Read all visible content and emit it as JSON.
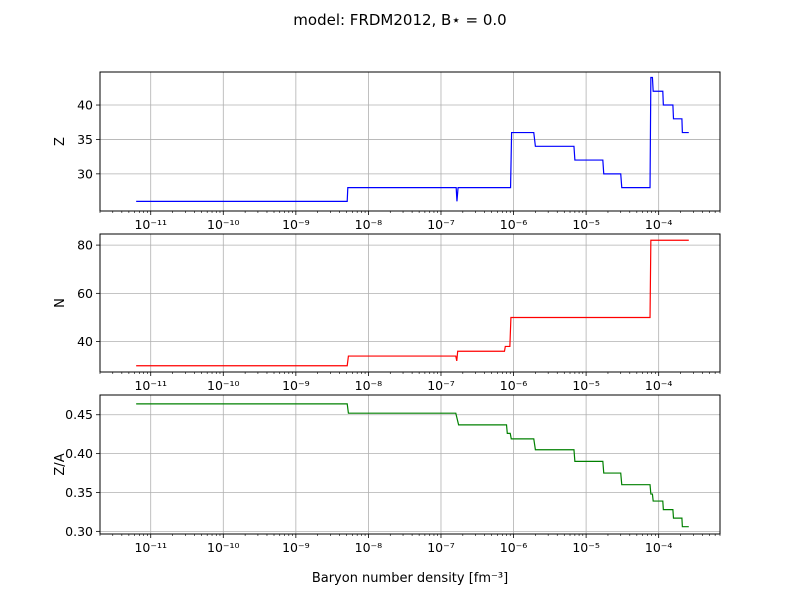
{
  "chart_data": {
    "title": "model: FRDM2012, B⋆ = 0.0",
    "x_scale": "log",
    "xlim": [
      2e-12,
      0.0007
    ],
    "xlabel": "Baryon number density [fm⁻³]",
    "grid": true,
    "x_tick_labels": [
      {
        "value": 1e-11,
        "label": "10⁻¹¹"
      },
      {
        "value": 1e-10,
        "label": "10⁻¹⁰"
      },
      {
        "value": 1e-09,
        "label": "10⁻⁹"
      },
      {
        "value": 1e-08,
        "label": "10⁻⁸"
      },
      {
        "value": 1e-07,
        "label": "10⁻⁷"
      },
      {
        "value": 1e-06,
        "label": "10⁻⁶"
      },
      {
        "value": 1e-05,
        "label": "10⁻⁵"
      },
      {
        "value": 0.0001,
        "label": "10⁻⁴"
      }
    ],
    "panels": [
      {
        "type": "line",
        "ylabel": "Z",
        "color": "#0000ff",
        "ylim": [
          24.6,
          44.8
        ],
        "yticks": [
          30,
          35,
          40
        ],
        "points": [
          [
            6.3e-12,
            26
          ],
          [
            5.1e-09,
            26
          ],
          [
            5.2e-09,
            28
          ],
          [
            1.62e-07,
            28
          ],
          [
            1.66e-07,
            26
          ],
          [
            1.72e-07,
            28
          ],
          [
            9.1e-07,
            28
          ],
          [
            9.4e-07,
            36
          ],
          [
            1.9e-06,
            36
          ],
          [
            2e-06,
            34
          ],
          [
            6.8e-06,
            34
          ],
          [
            7e-06,
            32
          ],
          [
            1.7e-05,
            32
          ],
          [
            1.75e-05,
            30
          ],
          [
            3e-05,
            30
          ],
          [
            3.1e-05,
            28
          ],
          [
            7.6e-05,
            28
          ],
          [
            7.8e-05,
            44
          ],
          [
            8.2e-05,
            44
          ],
          [
            8.4e-05,
            42
          ],
          [
            0.000114,
            42
          ],
          [
            0.000116,
            40
          ],
          [
            0.000157,
            40
          ],
          [
            0.00016,
            38
          ],
          [
            0.000209,
            38
          ],
          [
            0.000212,
            36
          ],
          [
            0.00026,
            36
          ]
        ]
      },
      {
        "type": "line",
        "ylabel": "N",
        "color": "#ff0000",
        "ylim": [
          27.4,
          84.6
        ],
        "yticks": [
          40,
          60,
          80
        ],
        "points": [
          [
            6.3e-12,
            30
          ],
          [
            5.1e-09,
            30
          ],
          [
            5.3e-09,
            34
          ],
          [
            1.6e-07,
            34
          ],
          [
            1.65e-07,
            32
          ],
          [
            1.7e-07,
            36
          ],
          [
            7.5e-07,
            36
          ],
          [
            7.7e-07,
            38
          ],
          [
            8.9e-07,
            38
          ],
          [
            9.2e-07,
            50
          ],
          [
            7.6e-05,
            50
          ],
          [
            7.8e-05,
            82
          ],
          [
            0.00026,
            82
          ]
        ]
      },
      {
        "type": "line",
        "ylabel": "Z/A",
        "color": "#008000",
        "ylim": [
          0.2966,
          0.4754
        ],
        "yticks": [
          0.3,
          0.35,
          0.4,
          0.45
        ],
        "ytick_labels": [
          "0.30",
          "0.35",
          "0.40",
          "0.45"
        ],
        "points": [
          [
            6.3e-12,
            0.464
          ],
          [
            5.1e-09,
            0.464
          ],
          [
            5.3e-09,
            0.452
          ],
          [
            1.6e-07,
            0.452
          ],
          [
            1.75e-07,
            0.437
          ],
          [
            8e-07,
            0.437
          ],
          [
            8.2e-07,
            0.426
          ],
          [
            9e-07,
            0.426
          ],
          [
            9.3e-07,
            0.419
          ],
          [
            1.9e-06,
            0.419
          ],
          [
            2e-06,
            0.405
          ],
          [
            6.8e-06,
            0.405
          ],
          [
            7e-06,
            0.39
          ],
          [
            1.7e-05,
            0.39
          ],
          [
            1.75e-05,
            0.375
          ],
          [
            3e-05,
            0.375
          ],
          [
            3.1e-05,
            0.36
          ],
          [
            7.6e-05,
            0.36
          ],
          [
            7.8e-05,
            0.348
          ],
          [
            8.2e-05,
            0.348
          ],
          [
            8.4e-05,
            0.339
          ],
          [
            0.000114,
            0.339
          ],
          [
            0.000116,
            0.328
          ],
          [
            0.000157,
            0.328
          ],
          [
            0.00016,
            0.317
          ],
          [
            0.000209,
            0.317
          ],
          [
            0.000212,
            0.306
          ],
          [
            0.00026,
            0.306
          ]
        ]
      }
    ]
  }
}
